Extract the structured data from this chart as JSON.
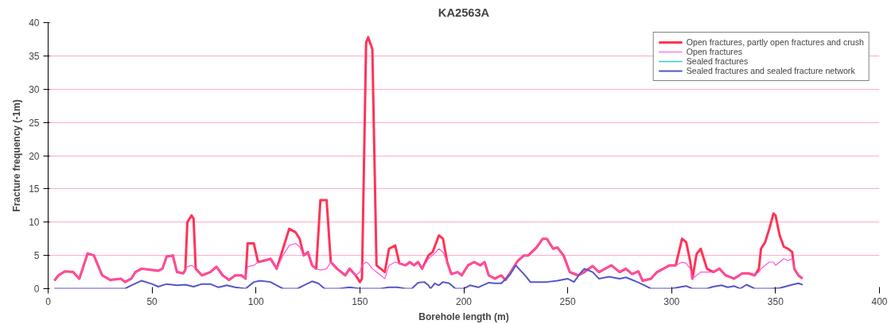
{
  "chart_data": {
    "type": "line",
    "title": "KA2563A",
    "xlabel": "Borehole length (m)",
    "ylabel": "Fracture frequency (-1m)",
    "xlim": [
      0,
      400
    ],
    "xticks": [
      0,
      50,
      100,
      150,
      200,
      250,
      300,
      350,
      400
    ],
    "ylim": [
      0,
      40
    ],
    "yticks": [
      0,
      5,
      10,
      15,
      20,
      25,
      30,
      35,
      40
    ],
    "grid": "y",
    "legend": "top right",
    "marker": "none",
    "line_style": "solid",
    "series": [
      {
        "name": "Open fractures",
        "color": "#ff55dd",
        "x": [
          3,
          5,
          8,
          12,
          15,
          19,
          22,
          26,
          30,
          35,
          37,
          40,
          42,
          45,
          50,
          53,
          55,
          57,
          60,
          62,
          65,
          66,
          67,
          69,
          70,
          71,
          74,
          78,
          81,
          84,
          87,
          90,
          93,
          95,
          96,
          99,
          101,
          105,
          107,
          110,
          113,
          116,
          119,
          121,
          123,
          125,
          127,
          129,
          131,
          134,
          136,
          139,
          143,
          145,
          148,
          150,
          151,
          153,
          154,
          156,
          158,
          160,
          162,
          164,
          167,
          169,
          172,
          174,
          176,
          178,
          180,
          183,
          185,
          188,
          190,
          192,
          194,
          197,
          199,
          202,
          205,
          208,
          210,
          212,
          215,
          218,
          220,
          223,
          226,
          229,
          231,
          235,
          238,
          240,
          243,
          245,
          248,
          251,
          255,
          258,
          262,
          265,
          268,
          271,
          275,
          278,
          281,
          284,
          286,
          290,
          293,
          296,
          299,
          302,
          305,
          307,
          309,
          310,
          312,
          314,
          317,
          320,
          323,
          326,
          330,
          334,
          337,
          340,
          342,
          343,
          345,
          347,
          349,
          350,
          352,
          354,
          356,
          358,
          359,
          361,
          363
        ],
        "values": [
          1.2,
          2.0,
          2.6,
          2.5,
          1.5,
          5.3,
          5.0,
          2.0,
          1.3,
          1.5,
          1.0,
          1.5,
          2.5,
          3.0,
          2.8,
          2.7,
          3.0,
          4.8,
          5.0,
          2.5,
          2.3,
          2.8,
          3.3,
          3.5,
          3.3,
          3.0,
          2.0,
          2.5,
          3.3,
          2.0,
          1.3,
          2.0,
          2.0,
          1.5,
          3.3,
          3.5,
          4.0,
          4.3,
          4.5,
          3.0,
          5.0,
          6.5,
          6.8,
          6.3,
          5.0,
          5.5,
          3.5,
          3.0,
          2.8,
          3.0,
          4.0,
          3.0,
          2.0,
          3.0,
          2.0,
          2.5,
          3.5,
          4.0,
          3.8,
          3.0,
          2.5,
          2.0,
          1.5,
          3.5,
          4.0,
          3.8,
          3.5,
          4.0,
          3.5,
          4.0,
          3.0,
          4.5,
          5.0,
          6.0,
          5.5,
          4.0,
          2.2,
          2.5,
          2.0,
          3.5,
          4.0,
          3.5,
          4.0,
          2.0,
          1.5,
          2.0,
          1.3,
          2.7,
          4.2,
          5.0,
          5.0,
          6.2,
          7.5,
          7.5,
          6.0,
          6.2,
          5.0,
          2.5,
          2.0,
          2.5,
          3.4,
          2.5,
          3.0,
          3.5,
          2.5,
          3.0,
          2.2,
          2.6,
          1.2,
          1.5,
          2.5,
          3.0,
          3.5,
          3.5,
          4.0,
          3.8,
          3.0,
          1.5,
          2.0,
          2.5,
          2.5,
          2.5,
          3.0,
          2.0,
          1.5,
          2.3,
          2.3,
          2.0,
          2.5,
          3.0,
          3.5,
          4.0,
          4.0,
          3.5,
          4.0,
          4.5,
          4.2,
          4.5,
          3.0,
          2.0,
          1.5
        ]
      },
      {
        "name": "Open fractures, partly open fractures and crush",
        "color": "#ff3355",
        "x": [
          3,
          5,
          8,
          12,
          15,
          19,
          22,
          26,
          30,
          35,
          37,
          40,
          42,
          45,
          50,
          53,
          55,
          57,
          60,
          62,
          65,
          66,
          67,
          69,
          70,
          71,
          74,
          78,
          81,
          84,
          87,
          90,
          93,
          95,
          96,
          99,
          101,
          105,
          107,
          110,
          113,
          116,
          119,
          121,
          123,
          125,
          127,
          129,
          131,
          134,
          136,
          139,
          143,
          145,
          148,
          150,
          151,
          153,
          154,
          156,
          158,
          160,
          162,
          164,
          167,
          169,
          172,
          174,
          176,
          178,
          180,
          183,
          185,
          188,
          190,
          192,
          194,
          197,
          199,
          202,
          205,
          208,
          210,
          212,
          215,
          218,
          220,
          223,
          226,
          229,
          231,
          235,
          238,
          240,
          243,
          245,
          248,
          251,
          255,
          258,
          262,
          265,
          268,
          271,
          275,
          278,
          281,
          284,
          286,
          290,
          293,
          296,
          299,
          302,
          305,
          307,
          309,
          310,
          312,
          314,
          317,
          320,
          323,
          326,
          330,
          334,
          337,
          340,
          342,
          343,
          345,
          347,
          349,
          350,
          352,
          354,
          356,
          358,
          359,
          361,
          363
        ],
        "values": [
          1.2,
          2.0,
          2.6,
          2.5,
          1.5,
          5.3,
          5.0,
          2.0,
          1.3,
          1.5,
          1.0,
          1.5,
          2.5,
          3.0,
          2.8,
          2.7,
          3.0,
          4.8,
          5.0,
          2.5,
          2.3,
          2.8,
          10.0,
          11.0,
          10.5,
          3.0,
          2.0,
          2.5,
          3.3,
          2.0,
          1.3,
          2.0,
          2.0,
          1.5,
          6.8,
          6.8,
          4.0,
          4.3,
          4.5,
          3.0,
          6.0,
          9.0,
          8.5,
          7.5,
          5.0,
          5.5,
          3.5,
          3.0,
          13.3,
          13.3,
          4.0,
          3.0,
          2.0,
          3.0,
          2.0,
          1.0,
          1.5,
          37.0,
          37.8,
          36.0,
          3.5,
          3.0,
          2.5,
          6.0,
          6.5,
          3.8,
          3.5,
          4.0,
          3.5,
          4.0,
          3.0,
          5.0,
          5.5,
          8.0,
          7.5,
          4.0,
          2.2,
          2.5,
          2.0,
          3.5,
          4.0,
          3.5,
          4.0,
          2.0,
          1.5,
          2.0,
          1.3,
          2.7,
          4.2,
          5.0,
          5.0,
          6.2,
          7.5,
          7.5,
          6.0,
          6.2,
          5.0,
          2.5,
          2.0,
          2.5,
          3.4,
          2.5,
          3.0,
          3.5,
          2.5,
          3.0,
          2.2,
          2.6,
          1.2,
          1.5,
          2.5,
          3.0,
          3.5,
          3.5,
          7.5,
          7.0,
          4.0,
          1.5,
          5.2,
          6.0,
          3.0,
          2.5,
          3.0,
          2.0,
          1.5,
          2.3,
          2.3,
          2.0,
          3.0,
          6.0,
          7.0,
          9.0,
          11.3,
          11.0,
          8.0,
          6.3,
          6.0,
          5.5,
          3.0,
          2.0,
          1.5
        ]
      },
      {
        "name": "Sealed fractures",
        "color": "#33cccc"
      },
      {
        "name": "Sealed fractures and sealed fracture network",
        "color": "#5555cc",
        "x": [
          3,
          10,
          20,
          30,
          37,
          40,
          45,
          50,
          53,
          57,
          62,
          66,
          70,
          74,
          78,
          82,
          86,
          90,
          95,
          99,
          102,
          107,
          110,
          113,
          120,
          123,
          127,
          130,
          133,
          140,
          145,
          150,
          160,
          164,
          168,
          172,
          175,
          178,
          181,
          183,
          184,
          186,
          188,
          190,
          193,
          196,
          200,
          203,
          207,
          212,
          215,
          218,
          222,
          225,
          228,
          230,
          232,
          240,
          245,
          250,
          253,
          256,
          258,
          262,
          265,
          270,
          275,
          278,
          282,
          287,
          290,
          300,
          305,
          307,
          310,
          317,
          320,
          324,
          327,
          330,
          333,
          336,
          340,
          348,
          352,
          358,
          361,
          363
        ],
        "values": [
          0,
          0,
          0,
          0,
          0,
          0.5,
          1.2,
          0.7,
          0.3,
          0.7,
          0.5,
          0.6,
          0.3,
          0.7,
          0.7,
          0.2,
          0.5,
          0.2,
          0,
          1.0,
          1.2,
          1.0,
          0.5,
          0,
          0,
          0.5,
          1.1,
          0.8,
          0,
          0,
          0.2,
          0,
          0,
          0.2,
          0.2,
          0,
          0,
          0.9,
          1.0,
          0.5,
          0,
          0.8,
          0.5,
          1.0,
          0.8,
          0,
          0,
          0.5,
          0.2,
          0.9,
          0.8,
          0.8,
          2.0,
          3.5,
          2.5,
          1.8,
          1.0,
          1.0,
          1.2,
          1.5,
          1.0,
          2.3,
          3.0,
          2.5,
          1.5,
          1.8,
          1.5,
          1.7,
          1.2,
          0.5,
          0,
          0,
          0.3,
          0.4,
          0,
          0,
          0.3,
          0.5,
          0.2,
          0.4,
          0,
          0.6,
          0,
          0,
          0.1,
          0.6,
          0.8,
          0.6
        ]
      }
    ]
  }
}
